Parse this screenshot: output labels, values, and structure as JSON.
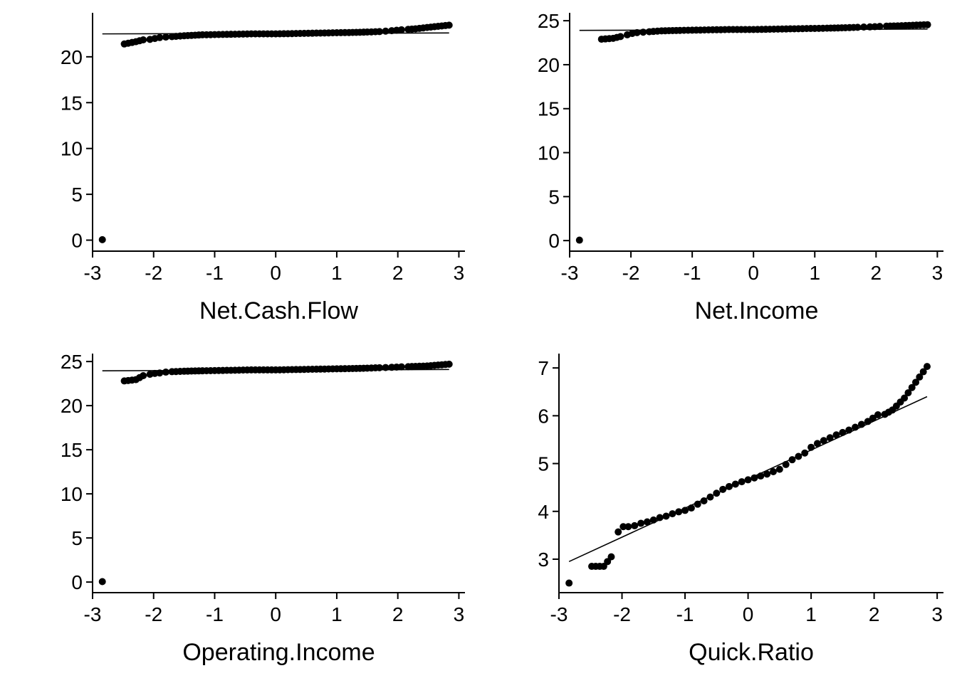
{
  "chart_data": [
    {
      "type": "scatter",
      "xlabel": "Net.Cash.Flow",
      "ylabel": "",
      "xlim": [
        -3.0,
        3.1
      ],
      "ylim": [
        -1.2,
        24.8
      ],
      "xticks": [
        -3,
        -2,
        -1,
        0,
        1,
        2,
        3
      ],
      "yticks": [
        0,
        5,
        10,
        15,
        20
      ],
      "x_tick_labels": [
        "-3",
        "-2",
        "-1",
        "0",
        "1",
        "2",
        "3"
      ],
      "y_tick_labels": [
        "0",
        "5",
        "10",
        "15",
        "20"
      ],
      "grid": false,
      "reference_line": {
        "x": [
          -2.84,
          2.84
        ],
        "y": [
          22.5,
          22.6
        ]
      },
      "points": [
        {
          "x": -2.84,
          "y": 0.05
        },
        {
          "x": -2.48,
          "y": 21.4
        },
        {
          "x": -2.29,
          "y": 21.65
        },
        {
          "x": -2.17,
          "y": 21.85
        },
        {
          "x": -2.06,
          "y": 21.9
        },
        {
          "x": -1.98,
          "y": 22.0
        },
        {
          "x": -1.9,
          "y": 22.1
        },
        {
          "x": -1.8,
          "y": 22.15
        },
        {
          "x": -1.7,
          "y": 22.2
        },
        {
          "x": -1.5,
          "y": 22.3
        },
        {
          "x": -1.2,
          "y": 22.4
        },
        {
          "x": -0.8,
          "y": 22.45
        },
        {
          "x": -0.4,
          "y": 22.5
        },
        {
          "x": 0.0,
          "y": 22.5
        },
        {
          "x": 0.4,
          "y": 22.55
        },
        {
          "x": 0.8,
          "y": 22.6
        },
        {
          "x": 1.2,
          "y": 22.65
        },
        {
          "x": 1.5,
          "y": 22.7
        },
        {
          "x": 1.7,
          "y": 22.75
        },
        {
          "x": 1.8,
          "y": 22.8
        },
        {
          "x": 1.9,
          "y": 22.85
        },
        {
          "x": 1.98,
          "y": 22.9
        },
        {
          "x": 2.06,
          "y": 22.95
        },
        {
          "x": 2.17,
          "y": 23.0
        },
        {
          "x": 2.29,
          "y": 23.05
        },
        {
          "x": 2.48,
          "y": 23.2
        },
        {
          "x": 2.84,
          "y": 23.45
        }
      ]
    },
    {
      "type": "scatter",
      "xlabel": "Net.Income",
      "ylabel": "",
      "xlim": [
        -3.0,
        3.1
      ],
      "ylim": [
        -1.2,
        25.9
      ],
      "xticks": [
        -3,
        -2,
        -1,
        0,
        1,
        2,
        3
      ],
      "yticks": [
        0,
        5,
        10,
        15,
        20,
        25
      ],
      "x_tick_labels": [
        "-3",
        "-2",
        "-1",
        "0",
        "1",
        "2",
        "3"
      ],
      "y_tick_labels": [
        "0",
        "5",
        "10",
        "15",
        "20",
        "25"
      ],
      "grid": false,
      "reference_line": {
        "x": [
          -2.84,
          2.84
        ],
        "y": [
          23.9,
          24.05
        ]
      },
      "points": [
        {
          "x": -2.84,
          "y": 0.05
        },
        {
          "x": -2.48,
          "y": 22.9
        },
        {
          "x": -2.29,
          "y": 23.0
        },
        {
          "x": -2.17,
          "y": 23.2
        },
        {
          "x": -2.06,
          "y": 23.4
        },
        {
          "x": -1.98,
          "y": 23.55
        },
        {
          "x": -1.9,
          "y": 23.65
        },
        {
          "x": -1.8,
          "y": 23.7
        },
        {
          "x": -1.7,
          "y": 23.75
        },
        {
          "x": -1.5,
          "y": 23.85
        },
        {
          "x": -1.2,
          "y": 23.9
        },
        {
          "x": -0.8,
          "y": 23.95
        },
        {
          "x": -0.4,
          "y": 24.0
        },
        {
          "x": 0.0,
          "y": 24.0
        },
        {
          "x": 0.4,
          "y": 24.05
        },
        {
          "x": 0.8,
          "y": 24.1
        },
        {
          "x": 1.2,
          "y": 24.15
        },
        {
          "x": 1.5,
          "y": 24.2
        },
        {
          "x": 1.7,
          "y": 24.25
        },
        {
          "x": 1.8,
          "y": 24.28
        },
        {
          "x": 1.9,
          "y": 24.3
        },
        {
          "x": 1.98,
          "y": 24.32
        },
        {
          "x": 2.06,
          "y": 24.35
        },
        {
          "x": 2.17,
          "y": 24.38
        },
        {
          "x": 2.29,
          "y": 24.4
        },
        {
          "x": 2.48,
          "y": 24.45
        },
        {
          "x": 2.84,
          "y": 24.55
        }
      ]
    },
    {
      "type": "scatter",
      "xlabel": "Operating.Income",
      "ylabel": "",
      "xlim": [
        -3.0,
        3.1
      ],
      "ylim": [
        -1.2,
        25.9
      ],
      "xticks": [
        -3,
        -2,
        -1,
        0,
        1,
        2,
        3
      ],
      "yticks": [
        0,
        5,
        10,
        15,
        20,
        25
      ],
      "x_tick_labels": [
        "-3",
        "-2",
        "-1",
        "0",
        "1",
        "2",
        "3"
      ],
      "y_tick_labels": [
        "0",
        "5",
        "10",
        "15",
        "20",
        "25"
      ],
      "grid": false,
      "reference_line": {
        "x": [
          -2.84,
          2.84
        ],
        "y": [
          23.95,
          24.1
        ]
      },
      "points": [
        {
          "x": -2.84,
          "y": 0.05
        },
        {
          "x": -2.48,
          "y": 22.8
        },
        {
          "x": -2.29,
          "y": 22.95
        },
        {
          "x": -2.17,
          "y": 23.4
        },
        {
          "x": -2.06,
          "y": 23.55
        },
        {
          "x": -1.98,
          "y": 23.65
        },
        {
          "x": -1.9,
          "y": 23.7
        },
        {
          "x": -1.8,
          "y": 23.8
        },
        {
          "x": -1.7,
          "y": 23.85
        },
        {
          "x": -1.5,
          "y": 23.9
        },
        {
          "x": -1.2,
          "y": 23.95
        },
        {
          "x": -0.8,
          "y": 24.0
        },
        {
          "x": -0.4,
          "y": 24.05
        },
        {
          "x": 0.0,
          "y": 24.05
        },
        {
          "x": 0.4,
          "y": 24.1
        },
        {
          "x": 0.8,
          "y": 24.15
        },
        {
          "x": 1.2,
          "y": 24.2
        },
        {
          "x": 1.5,
          "y": 24.25
        },
        {
          "x": 1.7,
          "y": 24.3
        },
        {
          "x": 1.8,
          "y": 24.32
        },
        {
          "x": 1.9,
          "y": 24.35
        },
        {
          "x": 1.98,
          "y": 24.37
        },
        {
          "x": 2.06,
          "y": 24.4
        },
        {
          "x": 2.17,
          "y": 24.42
        },
        {
          "x": 2.29,
          "y": 24.45
        },
        {
          "x": 2.48,
          "y": 24.5
        },
        {
          "x": 2.84,
          "y": 24.7
        }
      ]
    },
    {
      "type": "scatter",
      "xlabel": "Quick.Ratio",
      "ylabel": "",
      "xlim": [
        -3.0,
        3.1
      ],
      "ylim": [
        2.3,
        7.3
      ],
      "xticks": [
        -3,
        -2,
        -1,
        0,
        1,
        2,
        3
      ],
      "yticks": [
        3,
        4,
        5,
        6,
        7
      ],
      "x_tick_labels": [
        "-3",
        "-2",
        "-1",
        "0",
        "1",
        "2",
        "3"
      ],
      "y_tick_labels": [
        "3",
        "4",
        "5",
        "6",
        "7"
      ],
      "grid": false,
      "reference_line": {
        "x": [
          -2.84,
          2.84
        ],
        "y": [
          2.95,
          6.4
        ]
      },
      "points": [
        {
          "x": -2.84,
          "y": 2.5
        },
        {
          "x": -2.48,
          "y": 2.85
        },
        {
          "x": -2.29,
          "y": 2.85
        },
        {
          "x": -2.17,
          "y": 3.05
        },
        {
          "x": -2.06,
          "y": 3.57
        },
        {
          "x": -1.98,
          "y": 3.68
        },
        {
          "x": -1.9,
          "y": 3.68
        },
        {
          "x": -1.8,
          "y": 3.7
        },
        {
          "x": -1.7,
          "y": 3.75
        },
        {
          "x": -1.6,
          "y": 3.78
        },
        {
          "x": -1.5,
          "y": 3.82
        },
        {
          "x": -1.4,
          "y": 3.87
        },
        {
          "x": -1.3,
          "y": 3.9
        },
        {
          "x": -1.2,
          "y": 3.95
        },
        {
          "x": -1.1,
          "y": 3.99
        },
        {
          "x": -1.0,
          "y": 4.02
        },
        {
          "x": -0.9,
          "y": 4.07
        },
        {
          "x": -0.8,
          "y": 4.15
        },
        {
          "x": -0.7,
          "y": 4.22
        },
        {
          "x": -0.6,
          "y": 4.3
        },
        {
          "x": -0.5,
          "y": 4.38
        },
        {
          "x": -0.4,
          "y": 4.46
        },
        {
          "x": -0.3,
          "y": 4.52
        },
        {
          "x": -0.2,
          "y": 4.57
        },
        {
          "x": -0.1,
          "y": 4.62
        },
        {
          "x": 0.0,
          "y": 4.66
        },
        {
          "x": 0.1,
          "y": 4.7
        },
        {
          "x": 0.2,
          "y": 4.74
        },
        {
          "x": 0.3,
          "y": 4.78
        },
        {
          "x": 0.4,
          "y": 4.83
        },
        {
          "x": 0.5,
          "y": 4.88
        },
        {
          "x": 0.6,
          "y": 4.98
        },
        {
          "x": 0.7,
          "y": 5.08
        },
        {
          "x": 0.8,
          "y": 5.15
        },
        {
          "x": 0.9,
          "y": 5.22
        },
        {
          "x": 1.0,
          "y": 5.34
        },
        {
          "x": 1.1,
          "y": 5.42
        },
        {
          "x": 1.2,
          "y": 5.48
        },
        {
          "x": 1.3,
          "y": 5.54
        },
        {
          "x": 1.4,
          "y": 5.6
        },
        {
          "x": 1.5,
          "y": 5.65
        },
        {
          "x": 1.6,
          "y": 5.7
        },
        {
          "x": 1.7,
          "y": 5.76
        },
        {
          "x": 1.8,
          "y": 5.82
        },
        {
          "x": 1.9,
          "y": 5.88
        },
        {
          "x": 1.98,
          "y": 5.95
        },
        {
          "x": 2.06,
          "y": 6.02
        },
        {
          "x": 2.17,
          "y": 6.03
        },
        {
          "x": 2.29,
          "y": 6.12
        },
        {
          "x": 2.48,
          "y": 6.37
        },
        {
          "x": 2.84,
          "y": 7.03
        }
      ]
    }
  ]
}
